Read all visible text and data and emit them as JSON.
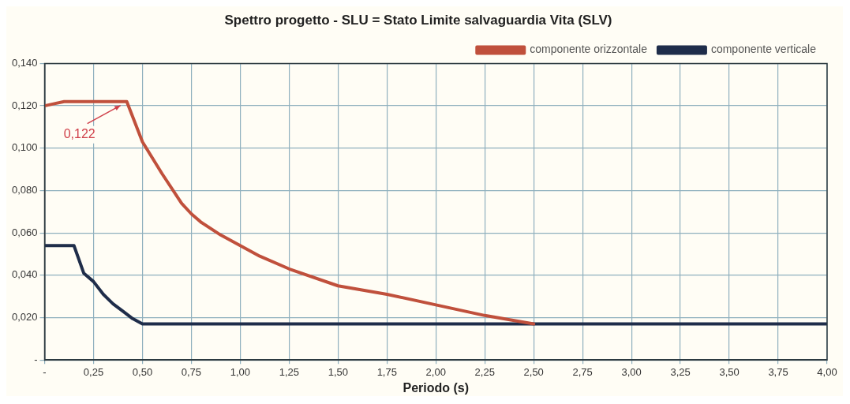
{
  "chart_data": {
    "type": "line",
    "title": "Spettro progetto - SLU = Stato Limite salvaguardia Vita (SLV)",
    "xlabel": "Periodo (s)",
    "xlim": [
      0,
      4
    ],
    "xticks": [
      {
        "value": 0,
        "label": "-"
      },
      {
        "value": 0.25,
        "label": "0,25"
      },
      {
        "value": 0.5,
        "label": "0,50"
      },
      {
        "value": 0.75,
        "label": "0,75"
      },
      {
        "value": 1,
        "label": "1,00"
      },
      {
        "value": 1.25,
        "label": "1,25"
      },
      {
        "value": 1.5,
        "label": "1,50"
      },
      {
        "value": 1.75,
        "label": "1,75"
      },
      {
        "value": 2,
        "label": "2,00"
      },
      {
        "value": 2.25,
        "label": "2,25"
      },
      {
        "value": 2.5,
        "label": "2,50"
      },
      {
        "value": 2.75,
        "label": "2,75"
      },
      {
        "value": 3,
        "label": "3,00"
      },
      {
        "value": 3.25,
        "label": "3,25"
      },
      {
        "value": 3.5,
        "label": "3,50"
      },
      {
        "value": 3.75,
        "label": "3,75"
      },
      {
        "value": 4,
        "label": "4,00"
      }
    ],
    "ylim": [
      0,
      0.14
    ],
    "yticks": [
      {
        "value": 0,
        "label": "-"
      },
      {
        "value": 0.02,
        "label": "0,020"
      },
      {
        "value": 0.04,
        "label": "0,040"
      },
      {
        "value": 0.06,
        "label": "0,060"
      },
      {
        "value": 0.08,
        "label": "0,080"
      },
      {
        "value": 0.1,
        "label": "0,100"
      },
      {
        "value": 0.12,
        "label": "0,120"
      },
      {
        "value": 0.14,
        "label": "0,140"
      }
    ],
    "grid": true,
    "legend": "top right",
    "marker": "none",
    "line_style": "solid",
    "annotations": [
      {
        "text": "0,122",
        "x": 0.4,
        "y": 0.122
      }
    ],
    "series": [
      {
        "name": "componente orizzontale",
        "color": "#c0503c",
        "x": [
          0,
          0.05,
          0.1,
          0.42,
          0.5,
          0.6,
          0.7,
          0.75,
          0.8,
          0.9,
          1,
          1.1,
          1.25,
          1.5,
          1.75,
          2,
          2.25,
          2.5
        ],
        "values": [
          0.12,
          0.121,
          0.122,
          0.122,
          0.103,
          0.088,
          0.074,
          0.069,
          0.065,
          0.059,
          0.054,
          0.049,
          0.043,
          0.035,
          0.031,
          0.026,
          0.021,
          0.017
        ]
      },
      {
        "name": "componente verticale",
        "color": "#1f2d4a",
        "x": [
          0,
          0.15,
          0.2,
          0.25,
          0.3,
          0.35,
          0.4,
          0.45,
          0.5,
          4
        ],
        "values": [
          0.054,
          0.054,
          0.041,
          0.037,
          0.031,
          0.0265,
          0.023,
          0.0195,
          0.017,
          0.017
        ]
      }
    ]
  }
}
